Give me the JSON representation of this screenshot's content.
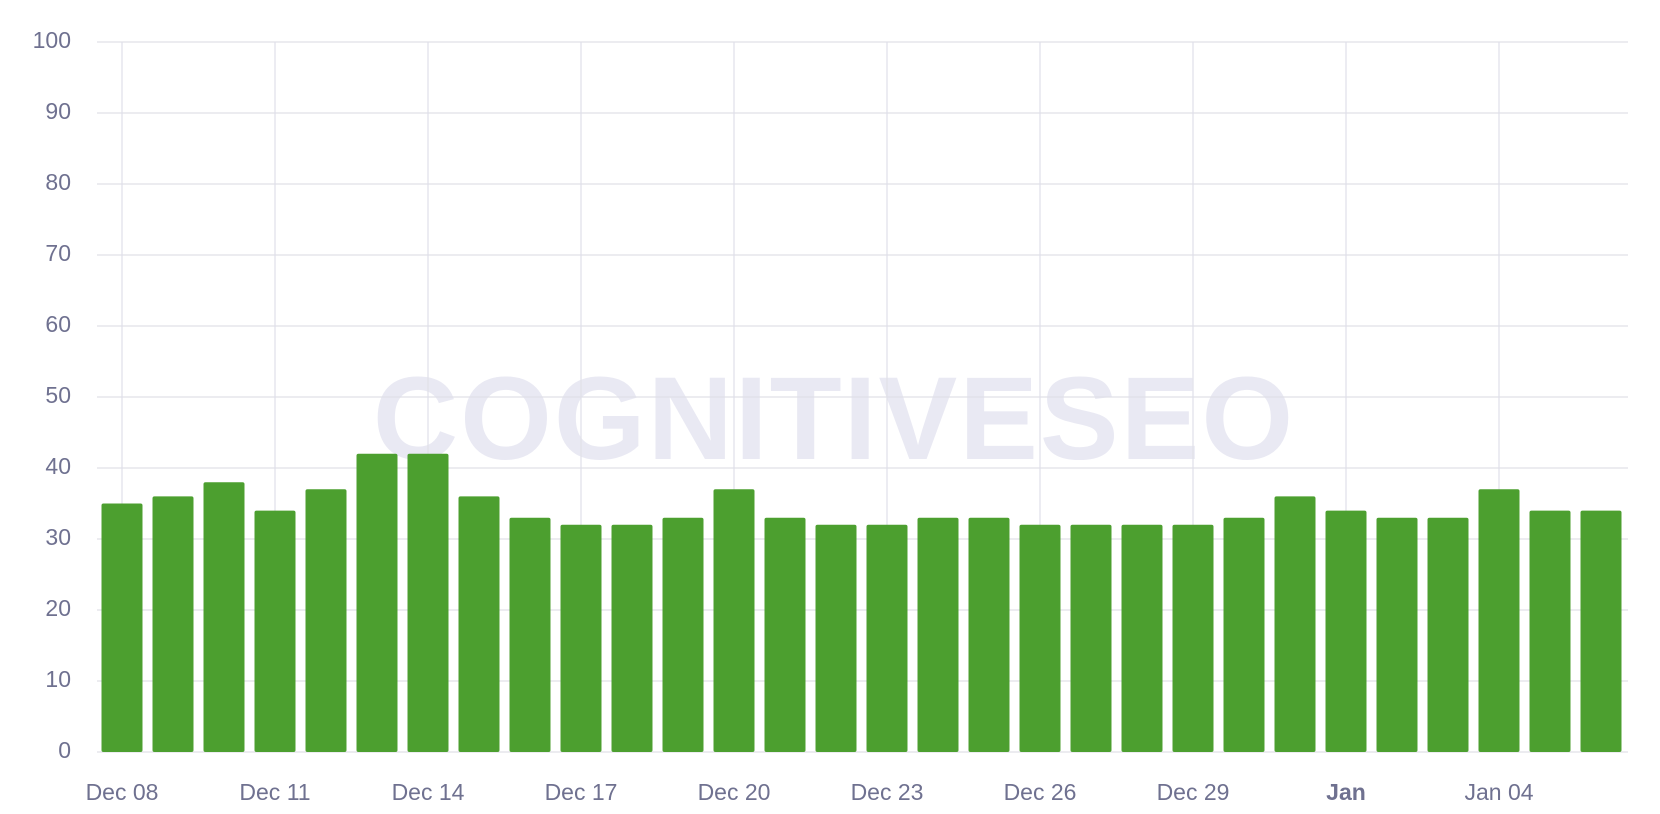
{
  "chart_data": {
    "type": "bar",
    "watermark": "COGNITIVESEO",
    "categories": [
      "Dec 08",
      null,
      null,
      "Dec 11",
      null,
      null,
      "Dec 14",
      null,
      null,
      "Dec 17",
      null,
      null,
      "Dec 20",
      null,
      null,
      "Dec 23",
      null,
      null,
      "Dec 26",
      null,
      null,
      "Dec 29",
      null,
      null,
      "Jan",
      null,
      null,
      "Jan 04",
      null,
      null
    ],
    "values": [
      35,
      36,
      38,
      34,
      37,
      42,
      42,
      36,
      33,
      32,
      32,
      33,
      37,
      33,
      32,
      32,
      33,
      33,
      32,
      32,
      32,
      32,
      33,
      36,
      34,
      33,
      33,
      37,
      34,
      34
    ],
    "color": "#4c9f2f",
    "ylim": [
      0,
      100
    ],
    "yticks": [
      0,
      10,
      20,
      30,
      40,
      50,
      60,
      70,
      80,
      90,
      100
    ],
    "grid": true,
    "emphasized_category_index": 24
  }
}
